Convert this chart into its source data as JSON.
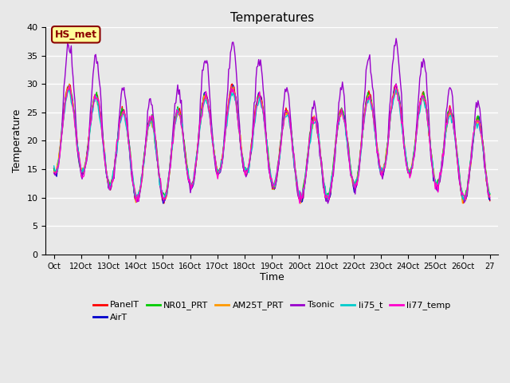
{
  "title": "Temperatures",
  "xlabel": "Time",
  "ylabel": "Temperature",
  "ylim": [
    0,
    40
  ],
  "yticks": [
    0,
    5,
    10,
    15,
    20,
    25,
    30,
    35,
    40
  ],
  "background_color": "#e8e8e8",
  "annotation_text": "HS_met",
  "annotation_fc": "#ffff99",
  "annotation_ec": "#8b0000",
  "annotation_tc": "#8b0000",
  "x_tick_positions": [
    0,
    1,
    2,
    3,
    4,
    5,
    6,
    7,
    8,
    9,
    10,
    11,
    12,
    13,
    14,
    15,
    16
  ],
  "x_tick_labels": [
    "Oct",
    "12Oct",
    "13Oct",
    "14Oct",
    "15Oct",
    "16Oct",
    "17Oct",
    "18Oct",
    "19Oct",
    "20Oct",
    "21Oct",
    "22Oct",
    "23Oct",
    "24Oct",
    "25Oct",
    "26Oct",
    "27"
  ],
  "series_names": [
    "PanelT",
    "AirT",
    "NR01_PRT",
    "AM25T_PRT",
    "Tsonic",
    "li75_t",
    "li77_temp"
  ],
  "series_colors": [
    "#ff0000",
    "#0000cd",
    "#00cc00",
    "#ff9900",
    "#9900cc",
    "#00cccc",
    "#ff00cc"
  ],
  "line_width": 1.0
}
